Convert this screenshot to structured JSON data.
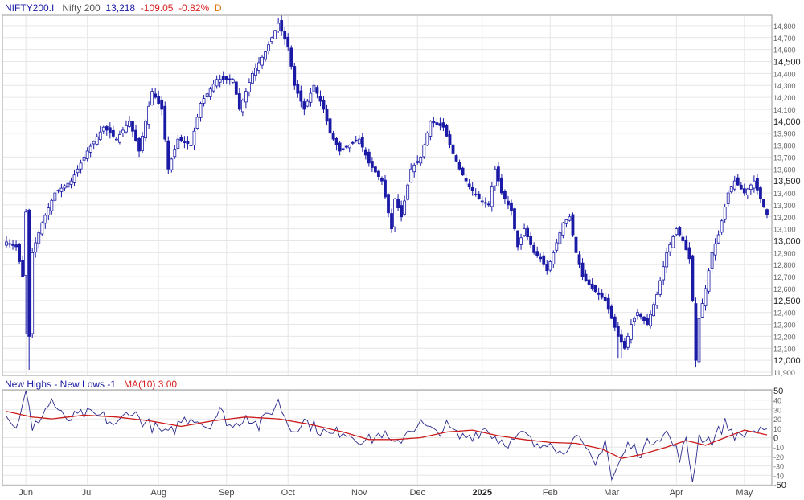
{
  "header": {
    "symbol": "NIFTY200.I",
    "name": "Nifty 200",
    "last": "13,218",
    "change": "-109.05",
    "change_pct": "-0.82%",
    "period": "D"
  },
  "indicator_header": {
    "label": "New Highs - New Lows -1",
    "ma_label": "MA(10) 3.00"
  },
  "colors": {
    "candle": "#1a1aa6",
    "grid": "#e6e6e6",
    "ma": "#cc1b1b",
    "indicator": "#2a2a8c",
    "axis_text": "#555555"
  },
  "chart_data": [
    {
      "type": "candlestick",
      "title": "Nifty 200",
      "ylim": [
        11880,
        14880
      ],
      "y_ticks": [
        11900,
        12000,
        12100,
        12200,
        12300,
        12400,
        12500,
        12600,
        12700,
        12800,
        12900,
        13000,
        13100,
        13200,
        13300,
        13400,
        13500,
        13600,
        13700,
        13800,
        13900,
        14000,
        14100,
        14200,
        14300,
        14400,
        14500,
        14600,
        14700,
        14800
      ],
      "y_tick_labels": [
        "11,900",
        "12,000",
        "12,100",
        "12,200",
        "12,300",
        "12,400",
        "12,500",
        "12,600",
        "12,700",
        "12,800",
        "12,900",
        "13,000",
        "13,100",
        "13,200",
        "13,300",
        "13,400",
        "13,500",
        "13,600",
        "13,700",
        "13,800",
        "13,900",
        "14,000",
        "14,100",
        "14,200",
        "14,300",
        "14,400",
        "14,500",
        "14,600",
        "14,700",
        "14,800"
      ],
      "major_ticks": [
        12000,
        12500,
        13000,
        13500,
        14000,
        14500
      ],
      "x_labels": [
        "Jun",
        "Jul",
        "Aug",
        "Sep",
        "Oct",
        "Nov",
        "Dec",
        "2025",
        "Feb",
        "Mar",
        "Apr",
        "May"
      ],
      "x_label_sessions": [
        6,
        25,
        47,
        68,
        87,
        109,
        127,
        147,
        168,
        187,
        207,
        228
      ],
      "trading_days": 236,
      "anchors": [
        [
          0,
          12990
        ],
        [
          3,
          12950
        ],
        [
          5,
          12700
        ],
        [
          6,
          13240
        ],
        [
          7,
          12200
        ],
        [
          8,
          12900
        ],
        [
          11,
          13150
        ],
        [
          15,
          13400
        ],
        [
          20,
          13500
        ],
        [
          25,
          13750
        ],
        [
          30,
          13950
        ],
        [
          34,
          13850
        ],
        [
          38,
          14000
        ],
        [
          41,
          13750
        ],
        [
          45,
          14250
        ],
        [
          48,
          14100
        ],
        [
          50,
          13600
        ],
        [
          53,
          13850
        ],
        [
          57,
          13800
        ],
        [
          60,
          14150
        ],
        [
          65,
          14350
        ],
        [
          70,
          14350
        ],
        [
          72,
          14100
        ],
        [
          76,
          14400
        ],
        [
          80,
          14580
        ],
        [
          84,
          14820
        ],
        [
          87,
          14620
        ],
        [
          89,
          14300
        ],
        [
          92,
          14100
        ],
        [
          95,
          14300
        ],
        [
          98,
          14100
        ],
        [
          100,
          13900
        ],
        [
          103,
          13750
        ],
        [
          106,
          13800
        ],
        [
          109,
          13850
        ],
        [
          112,
          13650
        ],
        [
          116,
          13500
        ],
        [
          119,
          13100
        ],
        [
          120,
          13350
        ],
        [
          122,
          13200
        ],
        [
          125,
          13600
        ],
        [
          128,
          13700
        ],
        [
          131,
          14000
        ],
        [
          135,
          13950
        ],
        [
          137,
          13800
        ],
        [
          140,
          13600
        ],
        [
          143,
          13450
        ],
        [
          146,
          13350
        ],
        [
          149,
          13300
        ],
        [
          151,
          13600
        ],
        [
          153,
          13400
        ],
        [
          156,
          13250
        ],
        [
          158,
          12950
        ],
        [
          160,
          13100
        ],
        [
          163,
          12900
        ],
        [
          165,
          12850
        ],
        [
          167,
          12750
        ],
        [
          169,
          12900
        ],
        [
          172,
          13150
        ],
        [
          174,
          13200
        ],
        [
          176,
          12900
        ],
        [
          178,
          12700
        ],
        [
          181,
          12600
        ],
        [
          185,
          12500
        ],
        [
          187,
          12350
        ],
        [
          189,
          12200
        ],
        [
          191,
          12100
        ],
        [
          193,
          12300
        ],
        [
          195,
          12400
        ],
        [
          198,
          12300
        ],
        [
          201,
          12550
        ],
        [
          204,
          12900
        ],
        [
          207,
          13100
        ],
        [
          209,
          13000
        ],
        [
          211,
          12850
        ],
        [
          212,
          12500
        ],
        [
          213,
          12000
        ],
        [
          214,
          12350
        ],
        [
          216,
          12600
        ],
        [
          218,
          12900
        ],
        [
          220,
          13050
        ],
        [
          223,
          13400
        ],
        [
          225,
          13500
        ],
        [
          228,
          13400
        ],
        [
          231,
          13500
        ],
        [
          233,
          13350
        ],
        [
          235,
          13218
        ]
      ]
    },
    {
      "type": "line",
      "title": "New Highs - New Lows -1",
      "ylim": [
        -50,
        50
      ],
      "y_ticks": [
        50,
        40,
        30,
        20,
        10,
        0,
        -10,
        -20,
        -30,
        -40,
        -50
      ],
      "y_tick_labels": [
        "50",
        "40",
        "30",
        "20",
        "10",
        "0",
        "-10",
        "-20",
        "-30",
        "-40",
        "-50"
      ],
      "series": [
        {
          "name": "New Highs - New Lows -1",
          "role": "indicator",
          "anchors": [
            [
              0,
              28
            ],
            [
              3,
              8
            ],
            [
              6,
              55
            ],
            [
              8,
              5
            ],
            [
              10,
              20
            ],
            [
              14,
              40
            ],
            [
              18,
              18
            ],
            [
              24,
              25
            ],
            [
              30,
              22
            ],
            [
              34,
              12
            ],
            [
              38,
              30
            ],
            [
              42,
              18
            ],
            [
              46,
              10
            ],
            [
              50,
              2
            ],
            [
              54,
              18
            ],
            [
              58,
              22
            ],
            [
              62,
              12
            ],
            [
              66,
              28
            ],
            [
              70,
              10
            ],
            [
              74,
              25
            ],
            [
              78,
              12
            ],
            [
              84,
              38
            ],
            [
              88,
              8
            ],
            [
              92,
              18
            ],
            [
              96,
              10
            ],
            [
              100,
              2
            ],
            [
              104,
              8
            ],
            [
              108,
              0
            ],
            [
              112,
              -3
            ],
            [
              116,
              5
            ],
            [
              120,
              -10
            ],
            [
              124,
              8
            ],
            [
              128,
              15
            ],
            [
              132,
              5
            ],
            [
              136,
              12
            ],
            [
              140,
              0
            ],
            [
              144,
              3
            ],
            [
              148,
              10
            ],
            [
              152,
              -2
            ],
            [
              156,
              -5
            ],
            [
              160,
              4
            ],
            [
              164,
              -12
            ],
            [
              168,
              0
            ],
            [
              172,
              -20
            ],
            [
              175,
              5
            ],
            [
              178,
              -10
            ],
            [
              182,
              -30
            ],
            [
              185,
              0
            ],
            [
              187,
              -45
            ],
            [
              189,
              -30
            ],
            [
              192,
              -8
            ],
            [
              196,
              -15
            ],
            [
              200,
              0
            ],
            [
              204,
              5
            ],
            [
              208,
              -20
            ],
            [
              210,
              -5
            ],
            [
              212,
              -45
            ],
            [
              214,
              2
            ],
            [
              218,
              -3
            ],
            [
              222,
              15
            ],
            [
              226,
              0
            ],
            [
              230,
              8
            ],
            [
              235,
              3
            ]
          ]
        },
        {
          "name": "MA(10)",
          "role": "ma",
          "anchors": [
            [
              0,
              28
            ],
            [
              8,
              22
            ],
            [
              14,
              20
            ],
            [
              24,
              24
            ],
            [
              34,
              22
            ],
            [
              44,
              18
            ],
            [
              54,
              12
            ],
            [
              64,
              18
            ],
            [
              74,
              22
            ],
            [
              84,
              20
            ],
            [
              94,
              14
            ],
            [
              104,
              6
            ],
            [
              112,
              -2
            ],
            [
              120,
              -2
            ],
            [
              128,
              0
            ],
            [
              136,
              6
            ],
            [
              144,
              8
            ],
            [
              152,
              2
            ],
            [
              160,
              -2
            ],
            [
              168,
              -5
            ],
            [
              176,
              -6
            ],
            [
              184,
              -12
            ],
            [
              190,
              -22
            ],
            [
              196,
              -18
            ],
            [
              204,
              -10
            ],
            [
              210,
              -3
            ],
            [
              216,
              -8
            ],
            [
              222,
              0
            ],
            [
              228,
              8
            ],
            [
              235,
              3
            ]
          ]
        }
      ]
    }
  ]
}
